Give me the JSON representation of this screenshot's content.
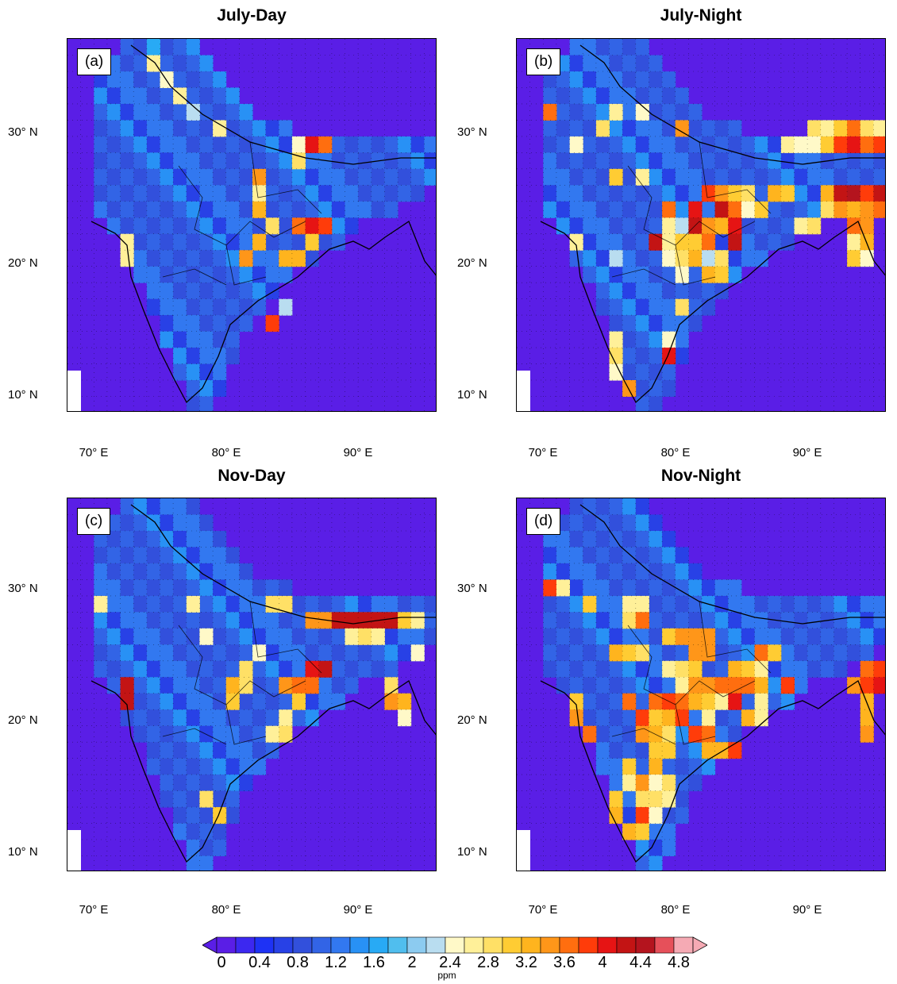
{
  "panels": [
    {
      "title": "July-Day",
      "label": "(a)",
      "hotspots": [
        [
          6,
          0,
          8
        ],
        [
          6,
          1,
          13
        ],
        [
          7,
          2,
          12
        ],
        [
          8,
          3,
          13
        ],
        [
          9,
          4,
          11
        ],
        [
          11,
          5,
          13
        ],
        [
          17,
          6,
          12
        ],
        [
          18,
          6,
          20
        ],
        [
          19,
          6,
          18
        ],
        [
          17,
          7,
          14
        ],
        [
          14,
          8,
          17
        ],
        [
          14,
          9,
          13
        ],
        [
          14,
          10,
          16
        ],
        [
          15,
          11,
          14
        ],
        [
          17,
          11,
          18
        ],
        [
          18,
          11,
          20
        ],
        [
          19,
          11,
          19
        ],
        [
          4,
          12,
          13
        ],
        [
          14,
          12,
          16
        ],
        [
          4,
          13,
          13
        ],
        [
          13,
          13,
          17
        ],
        [
          16,
          13,
          16
        ],
        [
          17,
          13,
          16
        ],
        [
          18,
          12,
          15
        ],
        [
          16,
          16,
          11
        ],
        [
          15,
          17,
          19
        ]
      ]
    },
    {
      "title": "July-Night",
      "label": "(b)",
      "hotspots": [
        [
          2,
          4,
          18
        ],
        [
          7,
          4,
          13
        ],
        [
          9,
          4,
          12
        ],
        [
          6,
          5,
          14
        ],
        [
          4,
          6,
          12
        ],
        [
          12,
          5,
          17
        ],
        [
          22,
          5,
          14
        ],
        [
          23,
          5,
          13
        ],
        [
          24,
          5,
          15
        ],
        [
          25,
          5,
          18
        ],
        [
          26,
          5,
          14
        ],
        [
          27,
          5,
          13
        ],
        [
          20,
          6,
          13
        ],
        [
          21,
          6,
          12
        ],
        [
          22,
          6,
          12
        ],
        [
          23,
          6,
          15
        ],
        [
          24,
          6,
          19
        ],
        [
          25,
          6,
          20
        ],
        [
          26,
          6,
          18
        ],
        [
          27,
          6,
          19
        ],
        [
          7,
          8,
          15
        ],
        [
          9,
          8,
          13
        ],
        [
          14,
          9,
          19
        ],
        [
          15,
          9,
          17
        ],
        [
          16,
          9,
          15
        ],
        [
          17,
          9,
          14
        ],
        [
          19,
          9,
          16
        ],
        [
          20,
          9,
          15
        ],
        [
          23,
          9,
          16
        ],
        [
          24,
          9,
          21
        ],
        [
          25,
          9,
          22
        ],
        [
          26,
          9,
          19
        ],
        [
          27,
          9,
          21
        ],
        [
          11,
          10,
          18
        ],
        [
          13,
          10,
          20
        ],
        [
          15,
          10,
          21
        ],
        [
          16,
          10,
          18
        ],
        [
          17,
          10,
          12
        ],
        [
          18,
          10,
          15
        ],
        [
          23,
          10,
          14
        ],
        [
          24,
          10,
          17
        ],
        [
          25,
          10,
          16
        ],
        [
          26,
          10,
          17
        ],
        [
          27,
          10,
          18
        ],
        [
          11,
          11,
          13
        ],
        [
          12,
          11,
          11
        ],
        [
          13,
          11,
          21
        ],
        [
          14,
          11,
          17
        ],
        [
          15,
          11,
          16
        ],
        [
          16,
          11,
          20
        ],
        [
          21,
          11,
          13
        ],
        [
          22,
          11,
          14
        ],
        [
          25,
          11,
          18
        ],
        [
          26,
          11,
          17
        ],
        [
          4,
          12,
          13
        ],
        [
          10,
          12,
          21
        ],
        [
          11,
          12,
          13
        ],
        [
          12,
          12,
          15
        ],
        [
          13,
          12,
          15
        ],
        [
          14,
          12,
          18
        ],
        [
          16,
          12,
          21
        ],
        [
          25,
          12,
          13
        ],
        [
          26,
          12,
          16
        ],
        [
          7,
          13,
          11
        ],
        [
          11,
          13,
          12
        ],
        [
          12,
          13,
          14
        ],
        [
          13,
          13,
          16
        ],
        [
          14,
          13,
          11
        ],
        [
          15,
          13,
          14
        ],
        [
          25,
          13,
          15
        ],
        [
          26,
          13,
          12
        ],
        [
          12,
          14,
          12
        ],
        [
          14,
          14,
          16
        ],
        [
          15,
          14,
          15
        ],
        [
          12,
          16,
          14
        ],
        [
          7,
          18,
          13
        ],
        [
          11,
          18,
          12
        ],
        [
          7,
          19,
          14
        ],
        [
          11,
          19,
          20
        ],
        [
          7,
          20,
          12
        ],
        [
          8,
          21,
          17
        ]
      ]
    },
    {
      "title": "Nov-Day",
      "label": "(c)",
      "hotspots": [
        [
          2,
          6,
          13
        ],
        [
          9,
          6,
          13
        ],
        [
          15,
          6,
          14
        ],
        [
          16,
          6,
          14
        ],
        [
          18,
          7,
          17
        ],
        [
          19,
          7,
          17
        ],
        [
          20,
          7,
          21
        ],
        [
          21,
          7,
          21
        ],
        [
          22,
          7,
          21
        ],
        [
          23,
          7,
          21
        ],
        [
          24,
          7,
          21
        ],
        [
          25,
          7,
          15
        ],
        [
          26,
          7,
          13
        ],
        [
          10,
          8,
          12
        ],
        [
          21,
          8,
          13
        ],
        [
          22,
          8,
          14
        ],
        [
          23,
          8,
          13
        ],
        [
          14,
          9,
          12
        ],
        [
          26,
          9,
          12
        ],
        [
          13,
          10,
          14
        ],
        [
          18,
          10,
          20
        ],
        [
          19,
          10,
          21
        ],
        [
          4,
          11,
          21
        ],
        [
          12,
          11,
          16
        ],
        [
          13,
          11,
          14
        ],
        [
          16,
          11,
          17
        ],
        [
          17,
          11,
          18
        ],
        [
          18,
          11,
          18
        ],
        [
          24,
          11,
          14
        ],
        [
          4,
          12,
          21
        ],
        [
          12,
          12,
          15
        ],
        [
          17,
          12,
          15
        ],
        [
          24,
          12,
          17
        ],
        [
          25,
          12,
          16
        ],
        [
          16,
          13,
          13
        ],
        [
          25,
          13,
          12
        ],
        [
          15,
          14,
          13
        ],
        [
          16,
          14,
          14
        ],
        [
          10,
          18,
          14
        ],
        [
          11,
          19,
          15
        ]
      ]
    },
    {
      "title": "Nov-Night",
      "label": "(d)",
      "hotspots": [
        [
          2,
          5,
          19
        ],
        [
          3,
          5,
          13
        ],
        [
          5,
          6,
          15
        ],
        [
          8,
          6,
          13
        ],
        [
          9,
          6,
          13
        ],
        [
          8,
          7,
          14
        ],
        [
          9,
          7,
          18
        ],
        [
          11,
          8,
          15
        ],
        [
          12,
          8,
          17
        ],
        [
          13,
          8,
          17
        ],
        [
          14,
          8,
          17
        ],
        [
          7,
          9,
          16
        ],
        [
          8,
          9,
          15
        ],
        [
          9,
          9,
          14
        ],
        [
          13,
          9,
          17
        ],
        [
          14,
          9,
          17
        ],
        [
          18,
          9,
          18
        ],
        [
          19,
          9,
          15
        ],
        [
          11,
          10,
          13
        ],
        [
          12,
          10,
          14
        ],
        [
          13,
          10,
          15
        ],
        [
          16,
          10,
          16
        ],
        [
          17,
          10,
          15
        ],
        [
          18,
          10,
          13
        ],
        [
          26,
          10,
          18
        ],
        [
          27,
          10,
          19
        ],
        [
          12,
          11,
          13
        ],
        [
          13,
          11,
          17
        ],
        [
          14,
          11,
          17
        ],
        [
          15,
          11,
          18
        ],
        [
          16,
          11,
          18
        ],
        [
          17,
          11,
          18
        ],
        [
          18,
          11,
          16
        ],
        [
          20,
          11,
          19
        ],
        [
          25,
          11,
          17
        ],
        [
          26,
          11,
          19
        ],
        [
          27,
          11,
          20
        ],
        [
          4,
          12,
          15
        ],
        [
          8,
          12,
          18
        ],
        [
          10,
          12,
          18
        ],
        [
          11,
          12,
          19
        ],
        [
          12,
          12,
          18
        ],
        [
          13,
          12,
          16
        ],
        [
          14,
          12,
          15
        ],
        [
          15,
          12,
          13
        ],
        [
          16,
          12,
          20
        ],
        [
          18,
          12,
          13
        ],
        [
          26,
          12,
          16
        ],
        [
          4,
          13,
          17
        ],
        [
          9,
          13,
          19
        ],
        [
          10,
          13,
          15
        ],
        [
          11,
          13,
          16
        ],
        [
          12,
          13,
          19
        ],
        [
          14,
          13,
          13
        ],
        [
          17,
          13,
          16
        ],
        [
          18,
          13,
          13
        ],
        [
          26,
          13,
          16
        ],
        [
          5,
          14,
          18
        ],
        [
          9,
          14,
          17
        ],
        [
          10,
          14,
          16
        ],
        [
          11,
          14,
          14
        ],
        [
          13,
          14,
          19
        ],
        [
          14,
          14,
          18
        ],
        [
          26,
          14,
          17
        ],
        [
          10,
          15,
          15
        ],
        [
          11,
          15,
          15
        ],
        [
          14,
          15,
          16
        ],
        [
          15,
          15,
          16
        ],
        [
          16,
          15,
          19
        ],
        [
          8,
          16,
          15
        ],
        [
          10,
          16,
          16
        ],
        [
          8,
          17,
          13
        ],
        [
          9,
          17,
          17
        ],
        [
          10,
          17,
          12
        ],
        [
          11,
          17,
          14
        ],
        [
          7,
          18,
          15
        ],
        [
          9,
          18,
          14
        ],
        [
          10,
          18,
          14
        ],
        [
          11,
          18,
          13
        ],
        [
          7,
          19,
          16
        ],
        [
          9,
          19,
          19
        ],
        [
          10,
          19,
          12
        ],
        [
          8,
          20,
          16
        ],
        [
          9,
          20,
          15
        ]
      ]
    }
  ],
  "ylabels": [
    "30° N",
    "20° N",
    "10° N"
  ],
  "xlabels": [
    "70° E",
    "80° E",
    "90° E"
  ],
  "colorbar": {
    "labels": [
      "0",
      "0.4",
      "0.8",
      "1.2",
      "1.6",
      "2",
      "2.4",
      "2.8",
      "3.2",
      "3.6",
      "4",
      "4.4",
      "4.8"
    ],
    "unit": "ppm",
    "colors": [
      "#5a1ee6",
      "#3c28f0",
      "#1e32f5",
      "#2841e6",
      "#3250dc",
      "#3264e6",
      "#3278f0",
      "#2891f5",
      "#28aaf5",
      "#50beee",
      "#8ccbf0",
      "#b9ddf0",
      "#fff9c8",
      "#fff099",
      "#ffe066",
      "#ffcc33",
      "#ffb41e",
      "#ff9619",
      "#ff6e0f",
      "#ff3c0a",
      "#e61414",
      "#c31414",
      "#b4141e",
      "#e6505a",
      "#f5aab4"
    ]
  }
}
